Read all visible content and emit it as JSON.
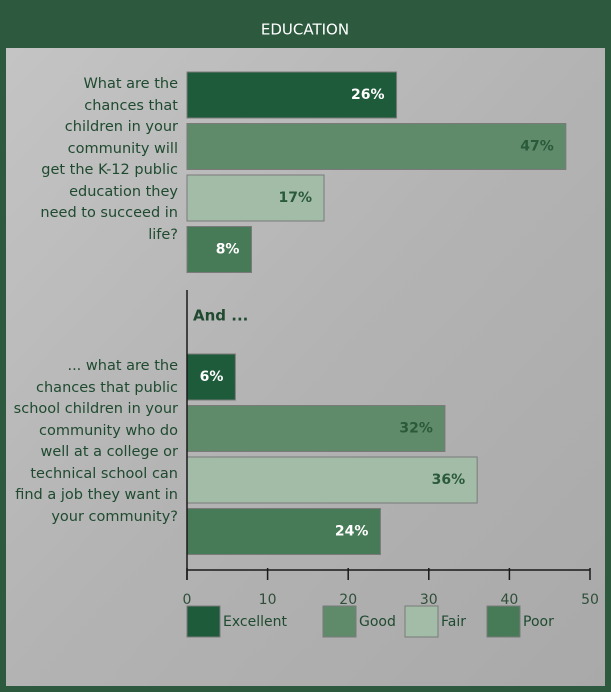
{
  "chart_data": {
    "type": "bar",
    "orientation": "horizontal",
    "title": "EDUCATION",
    "annotation": "And ...",
    "categories": [
      "What are the chances that children in your community will get the K-12 public education they need to succeed in life?",
      "... what are the chances that public school children in your community who do well at a college or technical school can find a job they want in your community?"
    ],
    "series": [
      {
        "name": "Excellent",
        "color": "#1e5b3a",
        "label_color": "#ffffff",
        "values": [
          26,
          6
        ],
        "value_labels": [
          "26%",
          "6%"
        ]
      },
      {
        "name": "Good",
        "color": "#5f8b6b",
        "label_color": "#2a5a3a",
        "values": [
          47,
          32
        ],
        "value_labels": [
          "47%",
          "32%"
        ]
      },
      {
        "name": "Fair",
        "color": "#a3bca7",
        "label_color": "#2a5a3a",
        "values": [
          17,
          36
        ],
        "value_labels": [
          "17%",
          "36%"
        ]
      },
      {
        "name": "Poor",
        "color": "#477a56",
        "label_color": "#ffffff",
        "values": [
          8,
          24
        ],
        "value_labels": [
          "8%",
          "24%"
        ]
      }
    ],
    "xlim": [
      0,
      50
    ],
    "xticks": [
      0,
      10,
      20,
      30,
      40,
      50
    ]
  }
}
